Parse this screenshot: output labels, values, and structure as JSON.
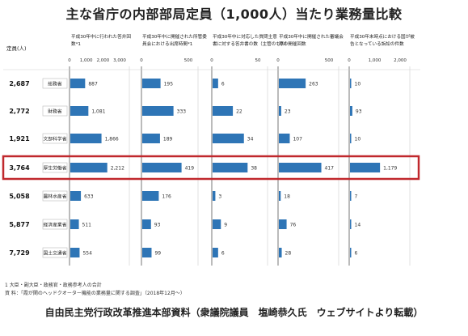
{
  "title": "主な省庁の内部部局定員（1,000人）当たり業務量比較",
  "footnote1": "1 大臣・副大臣・政務官・政務参考人の合計",
  "footnote2": "資 料：「霞が関のヘッドクオーター機能の業務量に関する調査」（2018年12月〜）",
  "source_credit": "自由民主党行政改革推進本部資料（衆議院議員　塩崎恭久氏　ウェブサイトより転載）",
  "colors": {
    "bar": "#2e75b6",
    "highlight_border": "#c0282d",
    "grid": "#cfcfcf"
  },
  "chart_data": {
    "type": "bar",
    "orientation": "horizontal",
    "staff_header": "定員(人)",
    "ministries": [
      {
        "name": "総務省",
        "staff": "2,687"
      },
      {
        "name": "財務省",
        "staff": "2,772"
      },
      {
        "name": "文部科学省",
        "staff": "1,921"
      },
      {
        "name": "厚生労働省",
        "staff": "3,764",
        "highlighted": true
      },
      {
        "name": "農林水産省",
        "staff": "5,058"
      },
      {
        "name": "経済産業省",
        "staff": "5,877"
      },
      {
        "name": "国土交通省",
        "staff": "7,729"
      }
    ],
    "panels": [
      {
        "title": "平成30年中に行われた答弁回数*1",
        "xlim": [
          0,
          3000
        ],
        "ticks": [
          "0",
          "1,000",
          "2,000",
          "3,000"
        ],
        "values": [
          887,
          1081,
          1866,
          2212,
          633,
          511,
          554
        ],
        "value_labels": [
          "887",
          "1,081",
          "1,866",
          "2,212",
          "633",
          "511",
          "554"
        ]
      },
      {
        "title": "平成30年中に開催された所管委員会における出席時間*1",
        "xlim": [
          0,
          500
        ],
        "ticks": [
          "0",
          "500"
        ],
        "values": [
          195,
          333,
          189,
          419,
          176,
          93,
          99
        ],
        "value_labels": [
          "195",
          "333",
          "189",
          "419",
          "176",
          "93",
          "99"
        ]
      },
      {
        "title": "平成30年中に対応した質問主意書に対する答弁書の数（主管のもの）",
        "xlim": [
          0,
          50
        ],
        "ticks": [
          "0",
          "50"
        ],
        "values": [
          6,
          22,
          34,
          38,
          3,
          9,
          6
        ],
        "value_labels": [
          "6",
          "22",
          "34",
          "38",
          "3",
          "9",
          "6"
        ]
      },
      {
        "title": "平成30年中に開催された審議会等の開催回数",
        "xlim": [
          0,
          500
        ],
        "ticks": [
          "0",
          "500"
        ],
        "values": [
          263,
          23,
          107,
          417,
          18,
          76,
          28
        ],
        "value_labels": [
          "263",
          "23",
          "107",
          "417",
          "18",
          "76",
          "28"
        ]
      },
      {
        "title": "平成30年末時点における国が被告となっている訴訟の件数",
        "xlim": [
          0,
          2000
        ],
        "ticks": [
          "0",
          "1,000",
          "2,000"
        ],
        "values": [
          10,
          93,
          10,
          1179,
          7,
          14,
          6
        ],
        "value_labels": [
          "10",
          "93",
          "10",
          "1,179",
          "7",
          "14",
          "6"
        ]
      }
    ]
  }
}
